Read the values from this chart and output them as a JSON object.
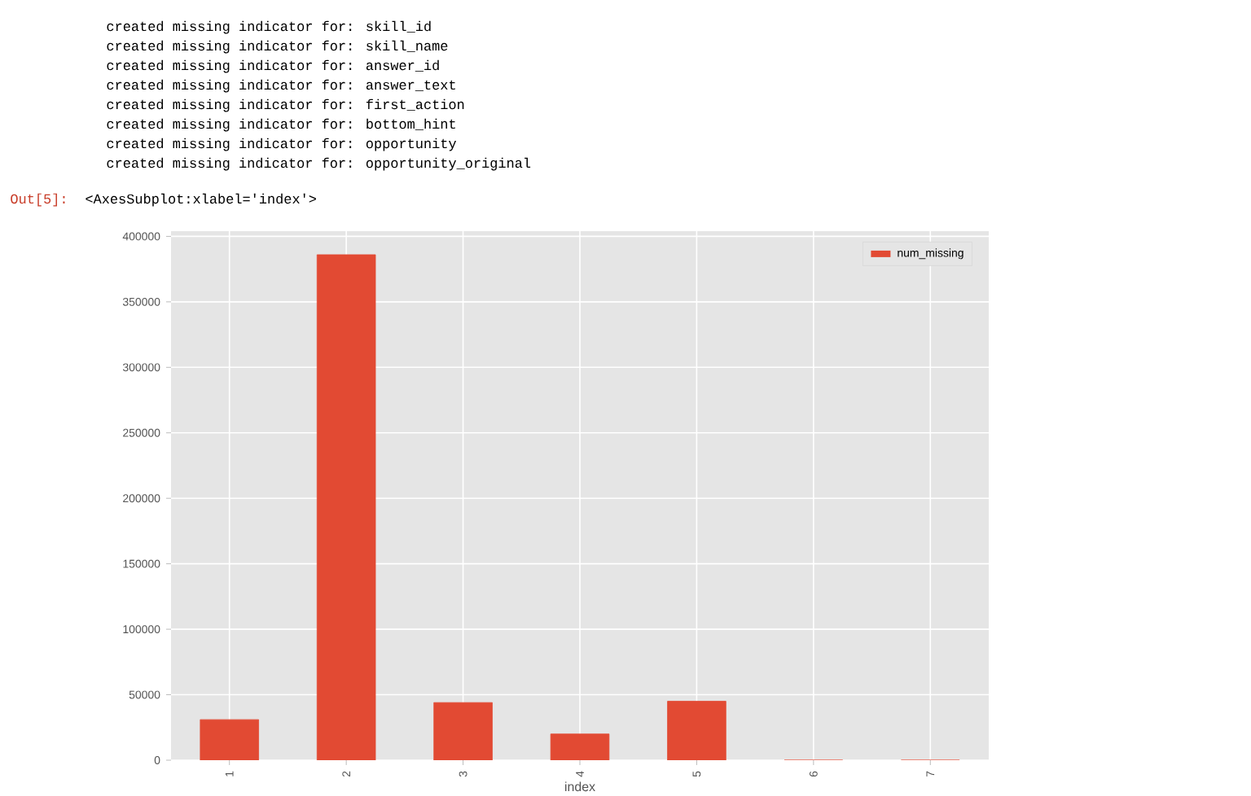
{
  "chart_data": {
    "type": "bar",
    "annotations": [
      "created missing indicator for: skill_id",
      "created missing indicator for: skill_name",
      "created missing indicator for: answer_id",
      "created missing indicator for: answer_text",
      "created missing indicator for: first_action",
      "created missing indicator for: bottom_hint",
      "created missing indicator for: opportunity",
      "created missing indicator for: opportunity_original",
      "Out[5]:",
      "<AxesSubplot:xlabel='index'>"
    ],
    "xlabel": "index",
    "categories": [
      "1",
      "2",
      "3",
      "4",
      "5",
      "6",
      "7"
    ],
    "series": [
      {
        "name": "num_missing",
        "color": "#e24a33",
        "values": [
          31000,
          386000,
          44000,
          20000,
          45000,
          0,
          0
        ]
      }
    ],
    "ylim": [
      0,
      404000
    ],
    "yticks": [
      0,
      50000,
      100000,
      150000,
      200000,
      250000,
      300000,
      350000,
      400000
    ],
    "grid": true,
    "legend": "top right"
  }
}
